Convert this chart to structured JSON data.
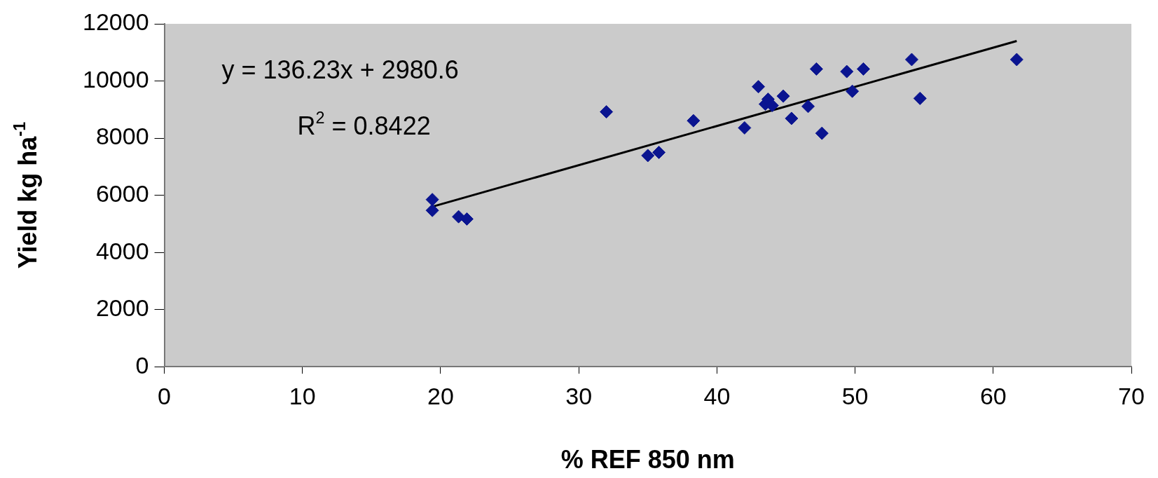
{
  "chart_data": {
    "type": "scatter",
    "xlabel": "% REF 850 nm",
    "ylabel": "Yield kg ha$^{-1}$",
    "xlim": [
      0,
      70
    ],
    "xticks": [
      0,
      10,
      20,
      30,
      40,
      50,
      60,
      70
    ],
    "ylim": [
      0,
      12000
    ],
    "yticks": [
      0,
      2000,
      4000,
      6000,
      8000,
      10000,
      12000
    ],
    "grid": false,
    "legend": false,
    "marker": "diamond",
    "series": [
      {
        "color": "#0a1490",
        "x": [
          19.4,
          19.4,
          21.3,
          21.9,
          32.0,
          35.0,
          35.8,
          38.3,
          42.0,
          43.0,
          43.5,
          43.7,
          44.0,
          44.8,
          45.4,
          46.6,
          47.2,
          47.6,
          49.4,
          49.8,
          50.6,
          54.1,
          54.7,
          61.7
        ],
        "values": [
          5850,
          5470,
          5250,
          5170,
          8920,
          7390,
          7500,
          8610,
          8360,
          9800,
          9190,
          9360,
          9140,
          9470,
          8690,
          9110,
          10420,
          8170,
          10330,
          9640,
          10420,
          10750,
          9390,
          10750
        ]
      },
      {
        "type": "line",
        "color": "#000000",
        "marker": "none",
        "x": [
          19.4,
          61.7
        ],
        "values": [
          5600,
          11400
        ]
      }
    ],
    "annotations": [
      "y = 136.23x + 2980.6",
      "R$^{2}$ = 0.8422"
    ]
  }
}
